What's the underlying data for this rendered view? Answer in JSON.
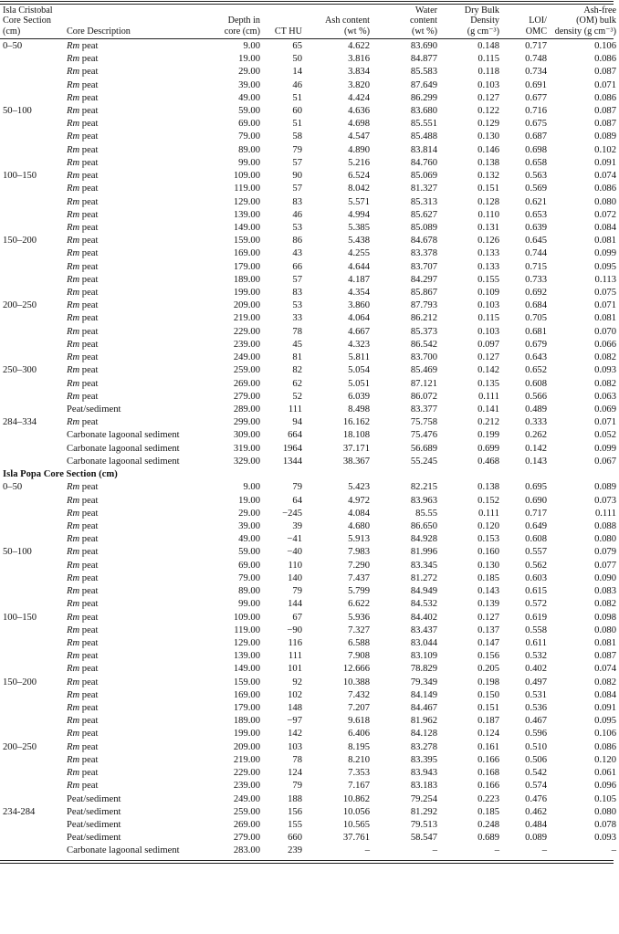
{
  "columns": [
    "Isla Cristobal Core Section (cm)",
    "Core Description",
    "Depth in core (cm)",
    "CT HU",
    "Ash content (wt %)",
    "Water content (wt %)",
    "Dry Bulk Density (g cm⁻³)",
    "LOI/ OMC",
    "Ash-free (OM) bulk density (g cm⁻³)"
  ],
  "header": {
    "c0": [
      "Isla Cristobal",
      "Core Section",
      "(cm)"
    ],
    "c1": [
      "Core Description"
    ],
    "c2": [
      "Depth in",
      "core (cm)"
    ],
    "c3": [
      "CT HU"
    ],
    "c4": [
      "Ash content",
      "(wt %)"
    ],
    "c5": [
      "Water",
      "content",
      "(wt %)"
    ],
    "c6": [
      "Dry Bulk",
      "Density",
      "(g cm⁻³)"
    ],
    "c7": [
      "LOI/",
      "OMC"
    ],
    "c8": [
      "Ash-free",
      "(OM) bulk",
      "density (g cm⁻³)"
    ]
  },
  "section2_title": "Isla Popa Core Section (cm)",
  "sections": [
    {
      "key": "cristobal",
      "rows": [
        [
          "0–50",
          "Rm peat",
          "9.00",
          "65",
          "4.622",
          "83.690",
          "0.148",
          "0.717",
          "0.106"
        ],
        [
          "",
          "Rm peat",
          "19.00",
          "50",
          "3.816",
          "84.877",
          "0.115",
          "0.748",
          "0.086"
        ],
        [
          "",
          "Rm peat",
          "29.00",
          "14",
          "3.834",
          "85.583",
          "0.118",
          "0.734",
          "0.087"
        ],
        [
          "",
          "Rm peat",
          "39.00",
          "46",
          "3.820",
          "87.649",
          "0.103",
          "0.691",
          "0.071"
        ],
        [
          "",
          "Rm peat",
          "49.00",
          "51",
          "4.424",
          "86.299",
          "0.127",
          "0.677",
          "0.086"
        ],
        [
          "50–100",
          "Rm peat",
          "59.00",
          "60",
          "4.636",
          "83.680",
          "0.122",
          "0.716",
          "0.087"
        ],
        [
          "",
          "Rm peat",
          "69.00",
          "51",
          "4.698",
          "85.551",
          "0.129",
          "0.675",
          "0.087"
        ],
        [
          "",
          "Rm peat",
          "79.00",
          "58",
          "4.547",
          "85.488",
          "0.130",
          "0.687",
          "0.089"
        ],
        [
          "",
          "Rm peat",
          "89.00",
          "79",
          "4.890",
          "83.814",
          "0.146",
          "0.698",
          "0.102"
        ],
        [
          "",
          "Rm peat",
          "99.00",
          "57",
          "5.216",
          "84.760",
          "0.138",
          "0.658",
          "0.091"
        ],
        [
          "100–150",
          "Rm peat",
          "109.00",
          "90",
          "6.524",
          "85.069",
          "0.132",
          "0.563",
          "0.074"
        ],
        [
          "",
          "Rm peat",
          "119.00",
          "57",
          "8.042",
          "81.327",
          "0.151",
          "0.569",
          "0.086"
        ],
        [
          "",
          "Rm peat",
          "129.00",
          "83",
          "5.571",
          "85.313",
          "0.128",
          "0.621",
          "0.080"
        ],
        [
          "",
          "Rm peat",
          "139.00",
          "46",
          "4.994",
          "85.627",
          "0.110",
          "0.653",
          "0.072"
        ],
        [
          "",
          "Rm peat",
          "149.00",
          "53",
          "5.385",
          "85.089",
          "0.131",
          "0.639",
          "0.084"
        ],
        [
          "150–200",
          "Rm peat",
          "159.00",
          "86",
          "5.438",
          "84.678",
          "0.126",
          "0.645",
          "0.081"
        ],
        [
          "",
          "Rm peat",
          "169.00",
          "43",
          "4.255",
          "83.378",
          "0.133",
          "0.744",
          "0.099"
        ],
        [
          "",
          "Rm peat",
          "179.00",
          "66",
          "4.644",
          "83.707",
          "0.133",
          "0.715",
          "0.095"
        ],
        [
          "",
          "Rm peat",
          "189.00",
          "57",
          "4.187",
          "84.297",
          "0.155",
          "0.733",
          "0.113"
        ],
        [
          "",
          "Rm peat",
          "199.00",
          "83",
          "4.354",
          "85.867",
          "0.109",
          "0.692",
          "0.075"
        ],
        [
          "200–250",
          "Rm peat",
          "209.00",
          "53",
          "3.860",
          "87.793",
          "0.103",
          "0.684",
          "0.071"
        ],
        [
          "",
          "Rm peat",
          "219.00",
          "33",
          "4.064",
          "86.212",
          "0.115",
          "0.705",
          "0.081"
        ],
        [
          "",
          "Rm peat",
          "229.00",
          "78",
          "4.667",
          "85.373",
          "0.103",
          "0.681",
          "0.070"
        ],
        [
          "",
          "Rm peat",
          "239.00",
          "45",
          "4.323",
          "86.542",
          "0.097",
          "0.679",
          "0.066"
        ],
        [
          "",
          "Rm peat",
          "249.00",
          "81",
          "5.811",
          "83.700",
          "0.127",
          "0.643",
          "0.082"
        ],
        [
          "250–300",
          "Rm peat",
          "259.00",
          "82",
          "5.054",
          "85.469",
          "0.142",
          "0.652",
          "0.093"
        ],
        [
          "",
          "Rm peat",
          "269.00",
          "62",
          "5.051",
          "87.121",
          "0.135",
          "0.608",
          "0.082"
        ],
        [
          "",
          "Rm peat",
          "279.00",
          "52",
          "6.039",
          "86.072",
          "0.111",
          "0.566",
          "0.063"
        ],
        [
          "",
          "Peat/sediment",
          "289.00",
          "111",
          "8.498",
          "83.377",
          "0.141",
          "0.489",
          "0.069"
        ],
        [
          "284–334",
          "Rm peat",
          "299.00",
          "94",
          "16.162",
          "75.758",
          "0.212",
          "0.333",
          "0.071"
        ],
        [
          "",
          "Carbonate lagoonal sediment",
          "309.00",
          "664",
          "18.108",
          "75.476",
          "0.199",
          "0.262",
          "0.052"
        ],
        [
          "",
          "Carbonate lagoonal sediment",
          "319.00",
          "1964",
          "37.171",
          "56.689",
          "0.699",
          "0.142",
          "0.099"
        ],
        [
          "",
          "Carbonate lagoonal sediment",
          "329.00",
          "1344",
          "38.367",
          "55.245",
          "0.468",
          "0.143",
          "0.067"
        ]
      ]
    },
    {
      "key": "popa",
      "rows": [
        [
          "0–50",
          "Rm peat",
          "9.00",
          "79",
          "5.423",
          "82.215",
          "0.138",
          "0.695",
          "0.089"
        ],
        [
          "",
          "Rm peat",
          "19.00",
          "64",
          "4.972",
          "83.963",
          "0.152",
          "0.690",
          "0.073"
        ],
        [
          "",
          "Rm peat",
          "29.00",
          "−245",
          "4.084",
          "85.55",
          "0.111",
          "0.717",
          "0.111"
        ],
        [
          "",
          "Rm peat",
          "39.00",
          "39",
          "4.680",
          "86.650",
          "0.120",
          "0.649",
          "0.088"
        ],
        [
          "",
          "Rm peat",
          "49.00",
          "−41",
          "5.913",
          "84.928",
          "0.153",
          "0.608",
          "0.080"
        ],
        [
          "50–100",
          "Rm peat",
          "59.00",
          "−40",
          "7.983",
          "81.996",
          "0.160",
          "0.557",
          "0.079"
        ],
        [
          "",
          "Rm peat",
          "69.00",
          "110",
          "7.290",
          "83.345",
          "0.130",
          "0.562",
          "0.077"
        ],
        [
          "",
          "Rm peat",
          "79.00",
          "140",
          "7.437",
          "81.272",
          "0.185",
          "0.603",
          "0.090"
        ],
        [
          "",
          "Rm peat",
          "89.00",
          "79",
          "5.799",
          "84.949",
          "0.143",
          "0.615",
          "0.083"
        ],
        [
          "",
          "Rm peat",
          "99.00",
          "144",
          "6.622",
          "84.532",
          "0.139",
          "0.572",
          "0.082"
        ],
        [
          "100–150",
          "Rm peat",
          "109.00",
          "67",
          "5.936",
          "84.402",
          "0.127",
          "0.619",
          "0.098"
        ],
        [
          "",
          "Rm peat",
          "119.00",
          "−90",
          "7.327",
          "83.437",
          "0.137",
          "0.558",
          "0.080"
        ],
        [
          "",
          "Rm peat",
          "129.00",
          "116",
          "6.588",
          "83.044",
          "0.147",
          "0.611",
          "0.081"
        ],
        [
          "",
          "Rm peat",
          "139.00",
          "111",
          "7.908",
          "83.109",
          "0.156",
          "0.532",
          "0.087"
        ],
        [
          "",
          "Rm peat",
          "149.00",
          "101",
          "12.666",
          "78.829",
          "0.205",
          "0.402",
          "0.074"
        ],
        [
          "150–200",
          "Rm peat",
          "159.00",
          "92",
          "10.388",
          "79.349",
          "0.198",
          "0.497",
          "0.082"
        ],
        [
          "",
          "Rm peat",
          "169.00",
          "102",
          "7.432",
          "84.149",
          "0.150",
          "0.531",
          "0.084"
        ],
        [
          "",
          "Rm peat",
          "179.00",
          "148",
          "7.207",
          "84.467",
          "0.151",
          "0.536",
          "0.091"
        ],
        [
          "",
          "Rm peat",
          "189.00",
          "−97",
          "9.618",
          "81.962",
          "0.187",
          "0.467",
          "0.095"
        ],
        [
          "",
          "Rm peat",
          "199.00",
          "142",
          "6.406",
          "84.128",
          "0.124",
          "0.596",
          "0.106"
        ],
        [
          "200–250",
          "Rm peat",
          "209.00",
          "103",
          "8.195",
          "83.278",
          "0.161",
          "0.510",
          "0.086"
        ],
        [
          "",
          "Rm peat",
          "219.00",
          "78",
          "8.210",
          "83.395",
          "0.166",
          "0.506",
          "0.120"
        ],
        [
          "",
          "Rm peat",
          "229.00",
          "124",
          "7.353",
          "83.943",
          "0.168",
          "0.542",
          "0.061"
        ],
        [
          "",
          "Rm peat",
          "239.00",
          "79",
          "7.167",
          "83.183",
          "0.166",
          "0.574",
          "0.096"
        ],
        [
          "",
          "Peat/sediment",
          "249.00",
          "188",
          "10.862",
          "79.254",
          "0.223",
          "0.476",
          "0.105"
        ],
        [
          "234-284",
          "Peat/sediment",
          "259.00",
          "156",
          "10.056",
          "81.292",
          "0.185",
          "0.462",
          "0.080"
        ],
        [
          "",
          "Peat/sediment",
          "269.00",
          "155",
          "10.565",
          "79.513",
          "0.248",
          "0.484",
          "0.078"
        ],
        [
          "",
          "Peat/sediment",
          "279.00",
          "660",
          "37.761",
          "58.547",
          "0.689",
          "0.089",
          "0.093"
        ],
        [
          "",
          "Carbonate lagoonal sediment",
          "283.00",
          "239",
          "–",
          "–",
          "–",
          "–",
          "–"
        ]
      ]
    }
  ]
}
